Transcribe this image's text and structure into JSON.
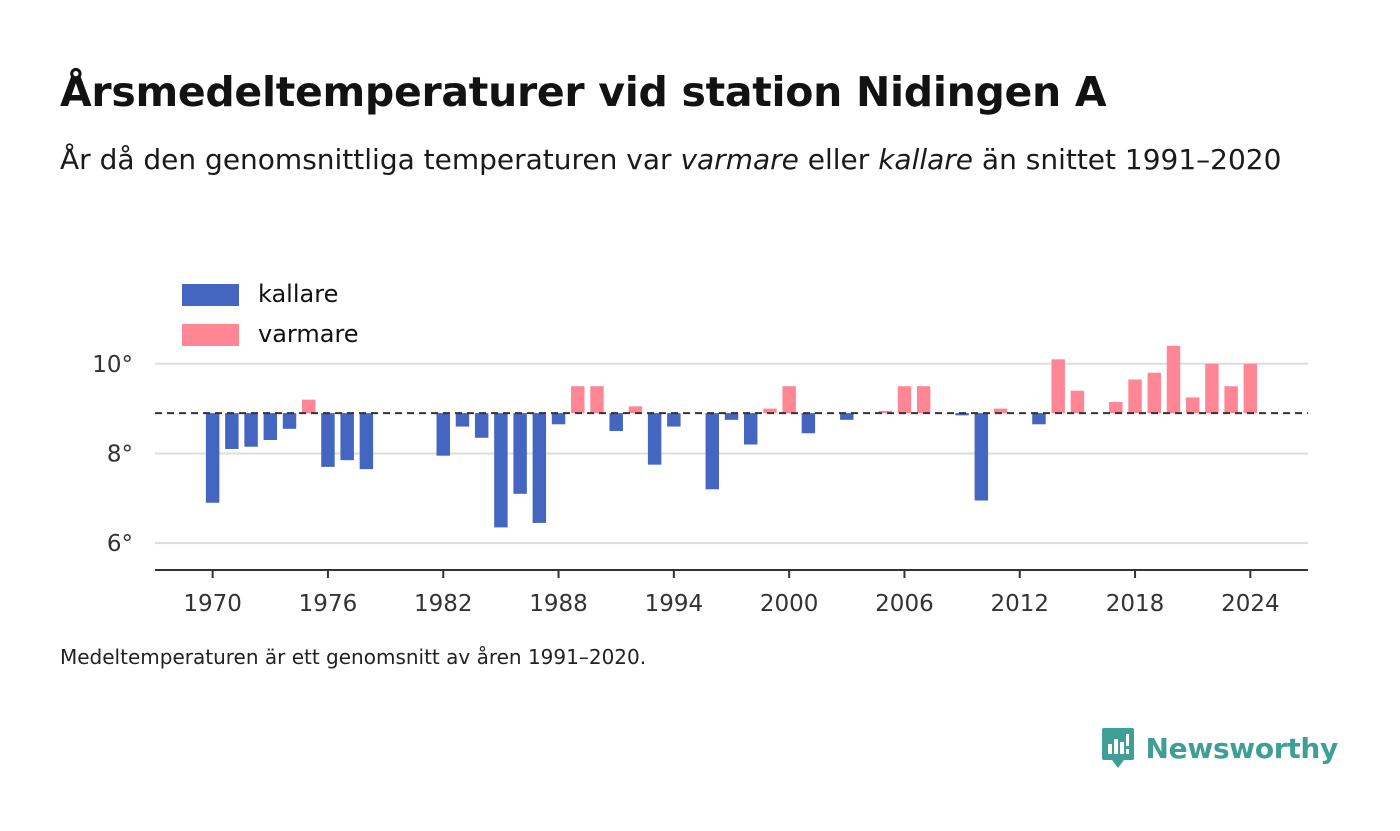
{
  "title": "Årsmedeltemperaturer vid station Nidingen A",
  "subtitle": {
    "part1": "År då den genomsnittliga temperaturen var ",
    "warmer": "varmare",
    "part2": " eller ",
    "colder": "kallare",
    "part3": " än snittet 1991–2020"
  },
  "note": "Medeltemperaturen är ett genomsnitt av åren 1991–2020.",
  "brand": {
    "name": "Newsworthy",
    "color": "#3f9e95"
  },
  "colors": {
    "colder": "#4466c0",
    "warmer": "#ff8795",
    "reference": "#333333",
    "grid": "#dddddd",
    "axis": "#333333"
  },
  "chart_data": {
    "type": "bar",
    "baseline": 8.9,
    "ylim": [
      5.4,
      11.2
    ],
    "xlim": [
      1967,
      2027
    ],
    "y_ticks": [
      6,
      8,
      10
    ],
    "y_tick_labels": [
      "6°",
      "8°",
      "10°"
    ],
    "x_ticks": [
      1970,
      1976,
      1982,
      1988,
      1994,
      2000,
      2006,
      2012,
      2018,
      2024
    ],
    "x_tick_labels": [
      "1970",
      "1976",
      "1982",
      "1988",
      "1994",
      "2000",
      "2006",
      "2012",
      "2018",
      "2024"
    ],
    "legend": [
      "kallare",
      "varmare"
    ],
    "legend_position": "top-left",
    "grid": true,
    "x": [
      1970,
      1971,
      1972,
      1973,
      1974,
      1975,
      1976,
      1977,
      1978,
      1982,
      1983,
      1984,
      1985,
      1986,
      1987,
      1988,
      1989,
      1990,
      1991,
      1992,
      1993,
      1994,
      1996,
      1997,
      1998,
      1999,
      2000,
      2001,
      2003,
      2005,
      2006,
      2007,
      2009,
      2010,
      2011,
      2013,
      2014,
      2015,
      2017,
      2018,
      2019,
      2020,
      2021,
      2022,
      2023,
      2024
    ],
    "values": [
      6.9,
      8.1,
      8.15,
      8.3,
      8.55,
      9.2,
      7.7,
      7.85,
      7.65,
      7.95,
      8.6,
      8.35,
      6.35,
      7.1,
      6.45,
      8.65,
      9.5,
      9.5,
      8.5,
      9.05,
      7.75,
      8.6,
      7.2,
      8.75,
      8.2,
      9.0,
      9.5,
      8.45,
      8.75,
      8.95,
      9.5,
      9.5,
      8.85,
      6.95,
      9.0,
      8.65,
      10.1,
      9.4,
      9.15,
      9.65,
      9.8,
      10.4,
      9.25,
      10.0,
      9.5,
      10.0
    ]
  }
}
